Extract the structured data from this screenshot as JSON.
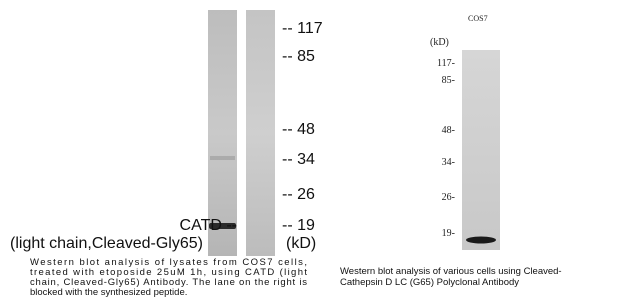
{
  "left_panel": {
    "markers": [
      "-- 117",
      "-- 85",
      "-- 48",
      "-- 34",
      "-- 26",
      "-- 19"
    ],
    "unit": "(kD)",
    "band_label": "CATD --",
    "band_label_sub": "(light chain,Cleaved-Gly65)",
    "caption": [
      "Western blot analysis of lysates from COS7 cells,",
      "treated with etoposide 25uM 1h, using CATD (light",
      "chain, Cleaved-Gly65) Antibody. The lane on the right is",
      "blocked with the synthesized peptide."
    ]
  },
  "right_panel": {
    "lane_label": "COS7",
    "unit": "(kD)",
    "markers": [
      "117-",
      "85-",
      "48-",
      "34-",
      "26-",
      "19-"
    ],
    "caption": [
      "Western blot analysis of various cells using Cleaved-",
      "Cathepsin D LC (G65) Polyclonal Antibody"
    ]
  }
}
